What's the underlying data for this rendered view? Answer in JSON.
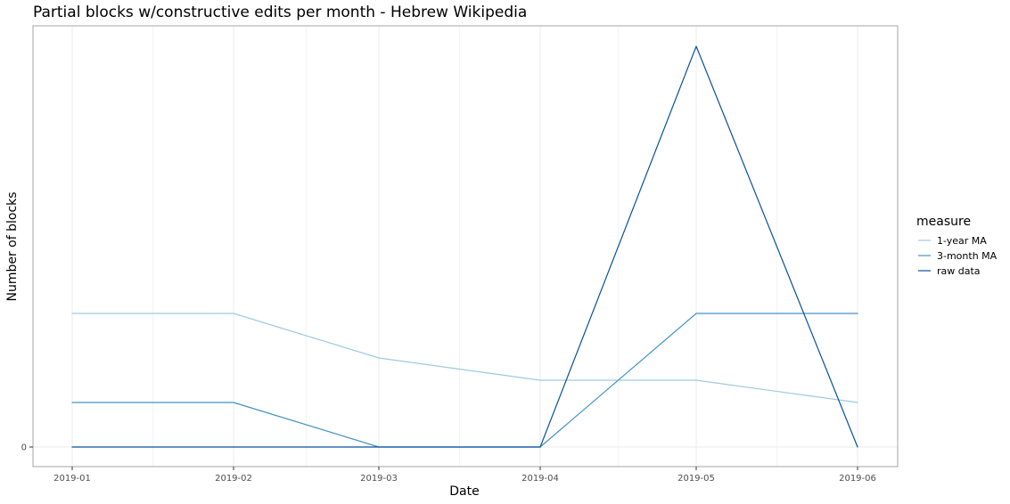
{
  "chart_data": {
    "type": "line",
    "title": "Partial blocks w/constructive edits per month - Hebrew Wikipedia",
    "xlabel": "Date",
    "ylabel": "Number of blocks",
    "categories": [
      "2019-01",
      "2019-02",
      "2019-03",
      "2019-04",
      "2019-05",
      "2019-06"
    ],
    "y_tick_labels": [
      "0"
    ],
    "ylim": [
      0,
      9
    ],
    "grid": true,
    "legend": {
      "title": "measure",
      "placement": "right"
    },
    "series": [
      {
        "name": "1-year MA",
        "color": "#9ecae1",
        "values": [
          3,
          3,
          2,
          1.5,
          1.5,
          1
        ]
      },
      {
        "name": "3-month MA",
        "color": "#4292c6",
        "values": [
          1,
          1,
          0,
          0,
          3,
          3
        ]
      },
      {
        "name": "raw data",
        "color": "#08519c",
        "values": [
          0,
          0,
          0,
          0,
          9,
          0
        ]
      }
    ]
  }
}
